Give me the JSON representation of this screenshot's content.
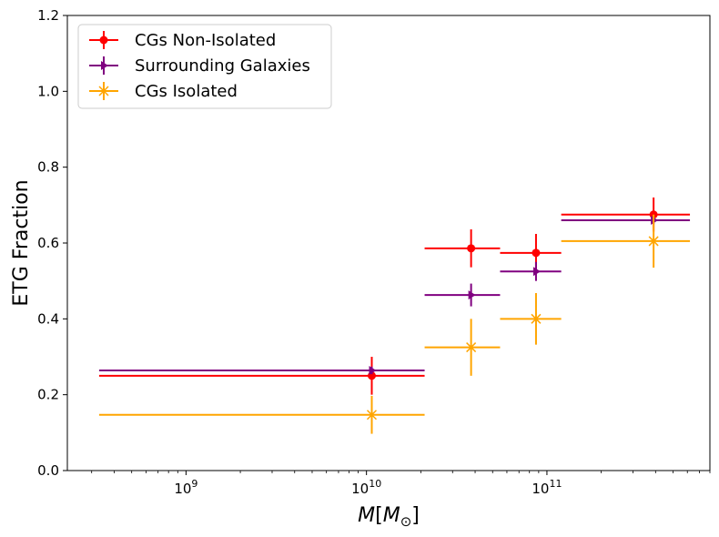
{
  "chart_data": {
    "type": "scatter",
    "xscale": "log",
    "xlabel": "M[M⊙]",
    "ylabel": "ETG Fraction",
    "xlim": [
      220000000,
      800000000000
    ],
    "ylim": [
      0,
      1.2
    ],
    "xticks": [
      {
        "value": 1000000000,
        "base": "10",
        "exp": "9"
      },
      {
        "value": 10000000000,
        "base": "10",
        "exp": "10"
      },
      {
        "value": 100000000000,
        "base": "10",
        "exp": "11"
      }
    ],
    "yticks": [
      "0.0",
      "0.2",
      "0.4",
      "0.6",
      "0.8",
      "1.0",
      "1.2"
    ],
    "grid": false,
    "legend_position": "top-left",
    "series": [
      {
        "name": "CGs Non-Isolated",
        "color": "#ff0000",
        "marker": "circle",
        "points": [
          {
            "x": 10700000000,
            "y": 0.25,
            "xmin": 330000000,
            "xmax": 21000000000,
            "yerr": 0.05
          },
          {
            "x": 38000000000,
            "y": 0.586,
            "xmin": 21000000000,
            "xmax": 55000000000,
            "yerr": 0.05
          },
          {
            "x": 87000000000,
            "y": 0.574,
            "xmin": 55000000000,
            "xmax": 120000000000,
            "yerr": 0.05
          },
          {
            "x": 390000000000,
            "y": 0.675,
            "xmin": 120000000000,
            "xmax": 620000000000,
            "yerr": 0.045
          }
        ]
      },
      {
        "name": "Surrounding Galaxies",
        "color": "#800080",
        "marker": "triangle-right",
        "points": [
          {
            "x": 10700000000,
            "y": 0.264,
            "xmin": 330000000,
            "xmax": 21000000000,
            "yerr": 0.01
          },
          {
            "x": 38000000000,
            "y": 0.463,
            "xmin": 21000000000,
            "xmax": 55000000000,
            "yerr": 0.03
          },
          {
            "x": 87000000000,
            "y": 0.525,
            "xmin": 55000000000,
            "xmax": 120000000000,
            "yerr": 0.025
          },
          {
            "x": 390000000000,
            "y": 0.66,
            "xmin": 120000000000,
            "xmax": 620000000000,
            "yerr": 0.01
          }
        ]
      },
      {
        "name": "CGs Isolated",
        "color": "#ffa500",
        "marker": "x",
        "points": [
          {
            "x": 10700000000,
            "y": 0.147,
            "xmin": 330000000,
            "xmax": 21000000000,
            "yerr": 0.05
          },
          {
            "x": 38000000000,
            "y": 0.325,
            "xmin": 21000000000,
            "xmax": 55000000000,
            "yerr": 0.075
          },
          {
            "x": 87000000000,
            "y": 0.4,
            "xmin": 55000000000,
            "xmax": 120000000000,
            "yerr": 0.068
          },
          {
            "x": 390000000000,
            "y": 0.605,
            "xmin": 120000000000,
            "xmax": 620000000000,
            "yerr": 0.07
          }
        ]
      }
    ]
  }
}
